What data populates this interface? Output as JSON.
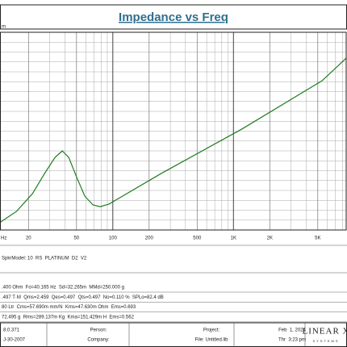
{
  "chart_data": {
    "type": "line",
    "title": "Impedance vs Freq",
    "y_label": "m",
    "x": [
      11.7,
      15.9,
      21.6,
      27.2,
      33.2,
      38.1,
      43.1,
      50.3,
      58.6,
      68.4,
      78.5,
      92.9,
      117,
      252,
      1170,
      5430,
      8600
    ],
    "values": [
      4,
      9.4,
      18.4,
      28.6,
      36.7,
      40,
      36.7,
      26.5,
      17.1,
      12.7,
      11.8,
      13.1,
      16.7,
      28.6,
      51,
      75.5,
      86.9
    ],
    "color": "#1f7a1f",
    "xlog": true,
    "xlim": [
      11.7,
      8600
    ],
    "ylim": [
      0,
      100
    ],
    "xticks": [
      {
        "value": 10,
        "label": "Hz"
      },
      20,
      50,
      100,
      200,
      500,
      {
        "value": 1000,
        "label": "1K"
      },
      {
        "value": 2000,
        "label": "2K"
      },
      {
        "value": 5000,
        "label": "5K"
      }
    ],
    "minor_xticks": [
      30,
      40,
      60,
      70,
      80,
      90,
      300,
      400,
      600,
      700,
      800,
      900,
      3000,
      4000,
      6000,
      7000,
      8000
    ],
    "yticks": [
      5,
      10,
      15,
      20,
      25,
      30,
      35,
      40,
      45,
      50,
      55,
      60,
      65,
      70,
      75,
      80,
      85,
      90,
      95
    ],
    "grid": true
  },
  "info": {
    "model": "SpkrModel: 10  RS  PLATINUM  D2  V2",
    "params": [
      ".400 Ohm  Fo=40.165 Hz  Sd=32.265m  MMd=250.000 g",
      ".497 T·M  Qms=2.459  Qes=0.497  Qts=0.497  No=0.110 %  SPLo=82.4 dB",
      "80 Ltr  Cms=57.690m mm/N  Kms=47.630m Ohm  Ems=0.693",
      "72.495 g  Rms=289.137m Kg  Kma=151.429m H  Ems=0.562"
    ]
  },
  "footer": {
    "version": "8.0.371",
    "version_date": "J-30-2007",
    "person": "Person:",
    "company": "Company:",
    "project": "Project:",
    "file": "File: Untitled.lib",
    "date": "Feb  1, 2024",
    "time": "Thr  3:23 pm",
    "logo": "LINEAR X",
    "logo_sub": "SYSTEMS"
  }
}
